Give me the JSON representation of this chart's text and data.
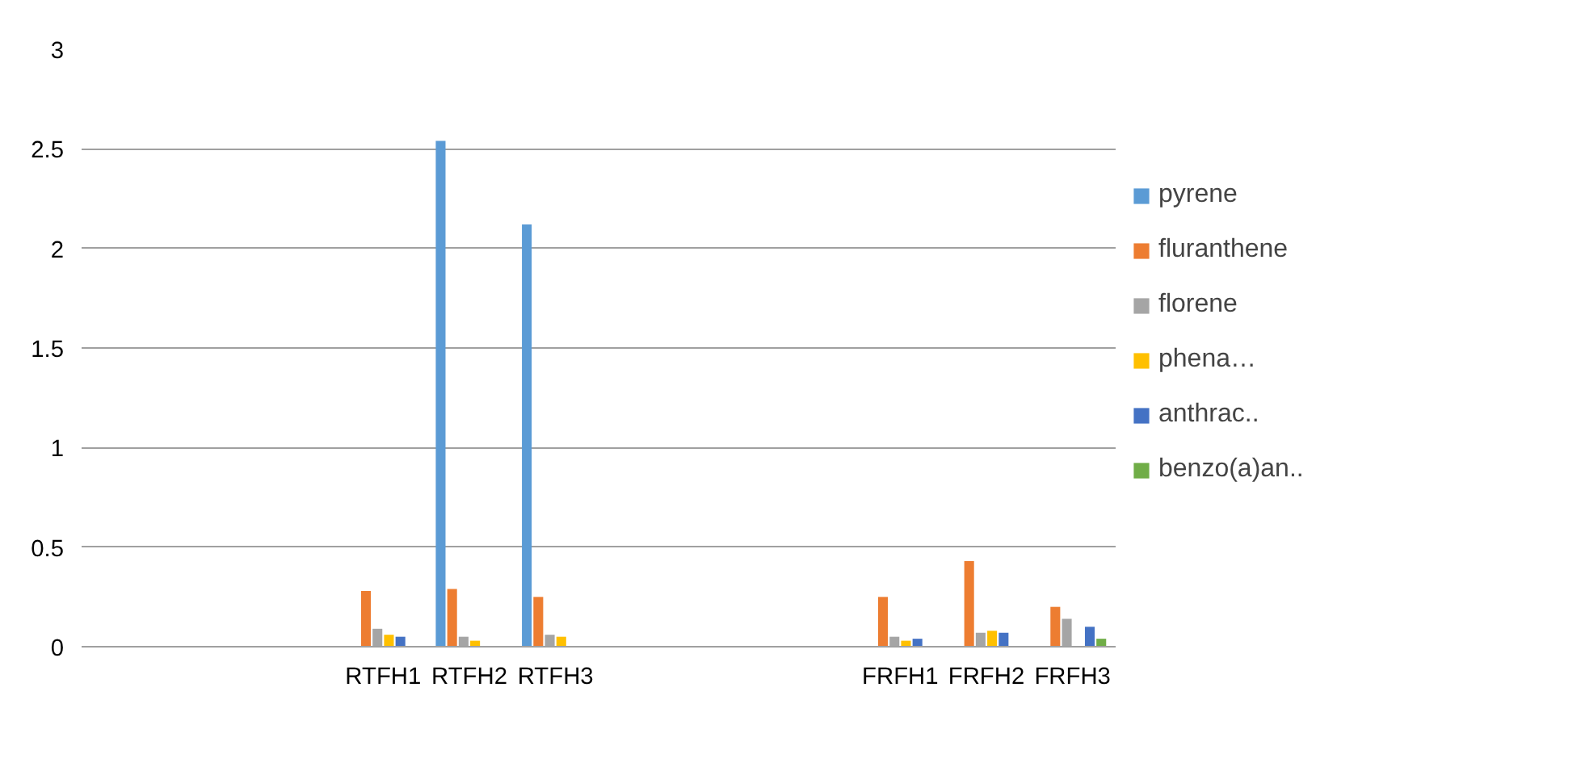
{
  "chart_data": {
    "type": "bar",
    "categories": [
      null,
      null,
      null,
      "RTFH1",
      "RTFH2",
      "RTFH3",
      null,
      null,
      null,
      "FRFH1",
      "FRFH2",
      "FRFH3"
    ],
    "series": [
      {
        "name": "pyrene",
        "color": "#5b9bd5",
        "values": [
          null,
          null,
          null,
          null,
          2.54,
          2.12,
          null,
          null,
          null,
          null,
          null,
          null
        ]
      },
      {
        "name": "fluranthene",
        "color": "#ed7d31",
        "values": [
          null,
          null,
          null,
          0.28,
          0.29,
          0.25,
          null,
          null,
          null,
          0.25,
          0.43,
          0.2
        ]
      },
      {
        "name": "florene",
        "color": "#a5a5a5",
        "values": [
          null,
          null,
          null,
          0.09,
          0.05,
          0.06,
          null,
          null,
          null,
          0.05,
          0.07,
          0.14
        ]
      },
      {
        "name": "phena…",
        "color": "#ffc000",
        "values": [
          null,
          null,
          null,
          0.06,
          0.03,
          0.05,
          null,
          null,
          null,
          0.03,
          0.08,
          null
        ]
      },
      {
        "name": "anthrac..",
        "color": "#4472c4",
        "values": [
          null,
          null,
          null,
          0.05,
          null,
          null,
          null,
          null,
          null,
          0.04,
          0.07,
          0.1
        ]
      },
      {
        "name": "benzo(a)an..",
        "color": "#70ad47",
        "values": [
          null,
          null,
          null,
          null,
          null,
          null,
          null,
          null,
          null,
          null,
          null,
          0.04
        ]
      }
    ],
    "ylim": [
      0,
      3
    ],
    "yticks": [
      0,
      0.5,
      1,
      1.5,
      2,
      2.5,
      3
    ],
    "grid": "y",
    "legend": "right"
  }
}
